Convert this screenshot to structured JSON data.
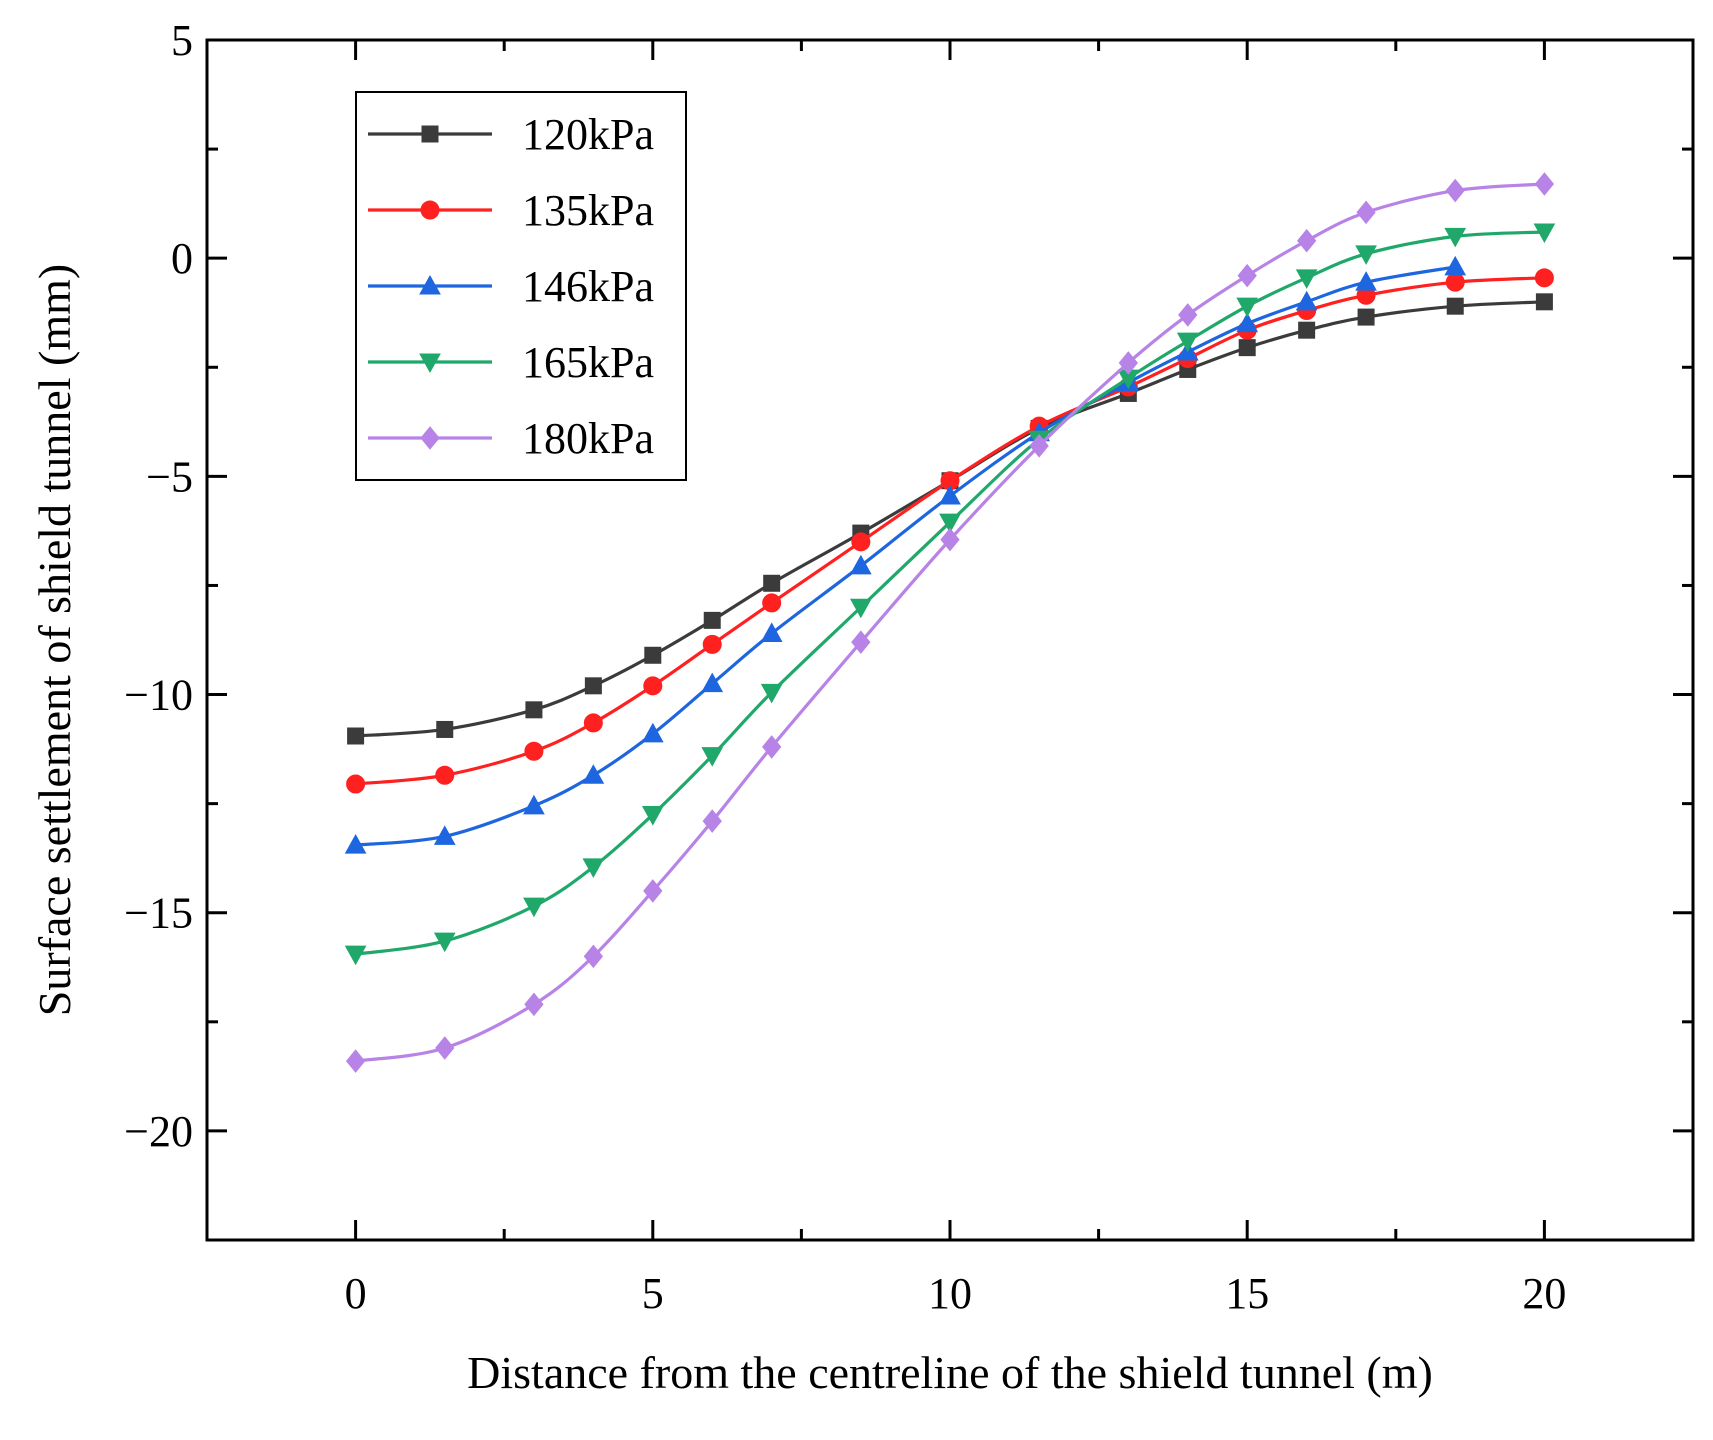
{
  "chart_data": {
    "type": "line",
    "xlabel": "Distance from the centreline of the shield tunnel (m)",
    "ylabel": "Surface settlement of shield tunnel (mm)",
    "xlim": [
      -2.5,
      22.5
    ],
    "ylim": [
      -22.5,
      5
    ],
    "x_ticks": [
      0,
      5,
      10,
      15,
      20
    ],
    "x_tick_labels": [
      "0",
      "5",
      "10",
      "15",
      "20"
    ],
    "y_ticks": [
      5,
      0,
      -5,
      -10,
      -15,
      -20
    ],
    "y_tick_labels": [
      "5",
      "0",
      "−5",
      "−10",
      "−15",
      "−20"
    ],
    "grid": false,
    "legend_position": "top-left",
    "series": [
      {
        "name": "120kPa",
        "color": "#3b3b3b",
        "marker": "square",
        "x": [
          0,
          1.5,
          3,
          4,
          5,
          6,
          7,
          8.5,
          10,
          11.5,
          13,
          14,
          15,
          16,
          17,
          18.5,
          20
        ],
        "y": [
          -10.95,
          -10.8,
          -10.35,
          -9.8,
          -9.1,
          -8.3,
          -7.45,
          -6.3,
          -5.1,
          -3.9,
          -3.1,
          -2.55,
          -2.05,
          -1.65,
          -1.35,
          -1.1,
          -1.0
        ]
      },
      {
        "name": "135kPa",
        "color": "#ff2020",
        "marker": "circle",
        "x": [
          0,
          1.5,
          3,
          4,
          5,
          6,
          7,
          8.5,
          10,
          11.5,
          13,
          14,
          15,
          16,
          17,
          18.5,
          20
        ],
        "y": [
          -12.05,
          -11.85,
          -11.3,
          -10.65,
          -9.8,
          -8.85,
          -7.9,
          -6.5,
          -5.1,
          -3.85,
          -2.95,
          -2.3,
          -1.65,
          -1.2,
          -0.85,
          -0.55,
          -0.45
        ]
      },
      {
        "name": "146kPa",
        "color": "#1e66e0",
        "marker": "triangle-up",
        "x": [
          0,
          1.5,
          3,
          4,
          5,
          6,
          7,
          8.5,
          10,
          11.5,
          13,
          14,
          15,
          16,
          17,
          18.5
        ],
        "y": [
          -13.45,
          -13.25,
          -12.55,
          -11.85,
          -10.9,
          -9.75,
          -8.6,
          -7.05,
          -5.45,
          -4.0,
          -2.85,
          -2.15,
          -1.5,
          -1.0,
          -0.55,
          -0.2
        ]
      },
      {
        "name": "165kPa",
        "color": "#1fa86a",
        "marker": "triangle-down",
        "x": [
          0,
          1.5,
          3,
          4,
          5,
          6,
          7,
          8.5,
          10,
          11.5,
          13,
          14,
          15,
          16,
          17,
          18.5,
          20
        ],
        "y": [
          -15.95,
          -15.65,
          -14.85,
          -13.95,
          -12.75,
          -11.4,
          -9.95,
          -8.0,
          -6.05,
          -4.15,
          -2.75,
          -1.9,
          -1.1,
          -0.45,
          0.1,
          0.5,
          0.6
        ]
      },
      {
        "name": "180kPa",
        "color": "#b883e6",
        "marker": "diamond",
        "x": [
          0,
          1.5,
          3,
          4,
          5,
          6,
          7,
          8.5,
          10,
          11.5,
          13,
          14,
          15,
          16,
          17,
          18.5,
          20
        ],
        "y": [
          -18.4,
          -18.1,
          -17.1,
          -16.0,
          -14.5,
          -12.9,
          -11.2,
          -8.8,
          -6.45,
          -4.3,
          -2.4,
          -1.3,
          -0.4,
          0.4,
          1.05,
          1.55,
          1.7
        ]
      }
    ]
  }
}
